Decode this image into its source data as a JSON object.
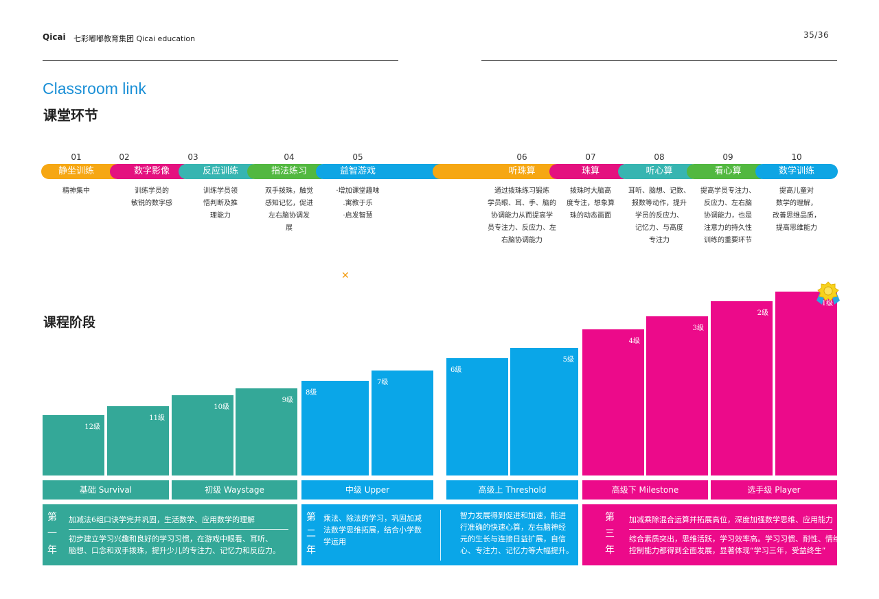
{
  "header": {
    "logo_text": "Qicai",
    "brand": "七彩嘟嘟教育集团  Qicai education",
    "page": "35/36"
  },
  "title_en": "Classroom link",
  "title_zh": "课堂环节",
  "colors": {
    "orange": "#f6a713",
    "pink": "#e4117f",
    "teal": "#37b5b1",
    "green": "#52b840",
    "blue": "#0ea5e4",
    "dark_teal": "#34a898",
    "stage_blue": "#0aa6e8",
    "magenta": "#ec0a8a"
  },
  "steps": [
    {
      "num": "01",
      "label": "静坐训练",
      "desc": "精神集中"
    },
    {
      "num": "02",
      "label": "数字影像",
      "desc": "训练学员的\n敏锐的数字感"
    },
    {
      "num": "03",
      "label": "反应训练",
      "desc": "训练学员领\n悟判断及推\n理能力"
    },
    {
      "num": "04",
      "label": "指法练习",
      "desc": "双手拨珠，触觉\n感知记忆，促进\n左右脑协调发\n展"
    },
    {
      "num": "05",
      "label": "益智游戏",
      "desc": "·增加课堂趣味\n.寓教于乐\n·启发智慧"
    },
    {
      "num": "06",
      "label": "听珠算",
      "desc": "通过拨珠练习锻炼\n学员眼、耳、手、脑的\n协调能力从而提高学\n员专注力、反应力、左\n右脑协调能力"
    },
    {
      "num": "07",
      "label": "珠算",
      "desc": "拨珠时大脑高\n度专注，想象算\n珠的动态画面"
    },
    {
      "num": "08",
      "label": "听心算",
      "desc": "耳听、脑想、记数、\n报数等动作，提升\n学员的反应力、\n记忆力、与高度\n专注力"
    },
    {
      "num": "09",
      "label": "看心算",
      "desc": "提高学员专注力、\n反应力、左右脑\n协调能力，也是\n注意力的持久性\n训练的重要环节"
    },
    {
      "num": "10",
      "label": "数学训练",
      "desc": "提高儿童对\n数学的理解，\n改善思维品质，\n提高思维能力"
    }
  ],
  "title2": "课程阶段",
  "levels": [
    "12级",
    "11级",
    "10级",
    "9级",
    "8级",
    "7级",
    "6级",
    "5级",
    "4级",
    "3级",
    "2级",
    "1级"
  ],
  "stages": [
    "基础 Survival",
    "初级 Waystage",
    "中级 Upper",
    "高级上 Threshold",
    "高级下 Milestone",
    "选手级 Player"
  ],
  "years": [
    {
      "chars": [
        "第",
        "一",
        "年"
      ],
      "line1": "加减法6组口诀学完并巩固，生活数学、应用数学的理解",
      "line2": "初步建立学习兴趣和良好的学习习惯，在游戏中眼看、耳听、\n脑想、口念和双手拨珠，提升少儿的专注力、记忆力和反应力。"
    },
    {
      "chars": [
        "第",
        "二",
        "年"
      ],
      "left": "乘法、除法的学习，巩固加减\n法数学思维拓展，结合小学数\n学运用",
      "right": "智力发展得到促进和加速，能进\n行准确的快速心算，左右脑神经\n元的生长与连接日益扩展，自信\n心、专注力、记忆力等大幅提升。"
    },
    {
      "chars": [
        "第",
        "三",
        "年"
      ],
      "line1": "加减乘除混合运算并拓展高位，深度加强数学思维、应用能力",
      "line2": "综合素质突出，思维活跃，学习效率高。学习习惯、耐性、情绪\n控制能力都得到全面发展，显著体现“学习三年，受益终生”"
    }
  ]
}
